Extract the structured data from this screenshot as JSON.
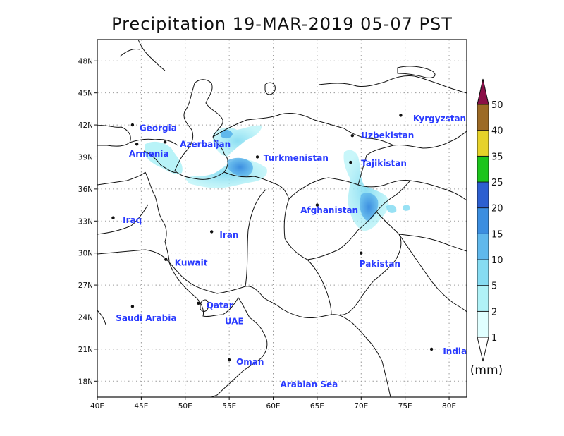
{
  "title": "Precipitation 19-MAR-2019 05-07 PST",
  "map": {
    "lon_range": [
      40,
      82
    ],
    "lat_range": [
      16.5,
      50
    ],
    "x_ticks": [
      "40E",
      "45E",
      "50E",
      "55E",
      "60E",
      "65E",
      "70E",
      "75E",
      "80E"
    ],
    "x_tick_values": [
      40,
      45,
      50,
      55,
      60,
      65,
      70,
      75,
      80
    ],
    "y_ticks": [
      "18N",
      "21N",
      "24N",
      "27N",
      "30N",
      "33N",
      "36N",
      "39N",
      "42N",
      "45N",
      "48N"
    ],
    "y_tick_values": [
      18,
      21,
      24,
      27,
      30,
      33,
      36,
      39,
      42,
      45,
      48
    ],
    "grid": "dotted"
  },
  "labels": [
    {
      "name": "Georgia",
      "lon": 44.8,
      "lat": 41.7,
      "dot": [
        44.0,
        42.0
      ]
    },
    {
      "name": "Azerbaijan",
      "lon": 49.4,
      "lat": 40.2,
      "dot": [
        47.7,
        40.4
      ]
    },
    {
      "name": "Armenia",
      "lon": 43.6,
      "lat": 39.3,
      "dot": [
        44.5,
        40.2
      ]
    },
    {
      "name": "Turkmenistan",
      "lon": 58.9,
      "lat": 38.9,
      "dot": [
        58.2,
        39.0
      ]
    },
    {
      "name": "Uzbekistan",
      "lon": 70.0,
      "lat": 41.0,
      "dot": [
        69.0,
        41.0
      ]
    },
    {
      "name": "Kyrgyzstan",
      "lon": 75.9,
      "lat": 42.6,
      "dot": [
        74.5,
        42.9
      ]
    },
    {
      "name": "Tajikistan",
      "lon": 70.0,
      "lat": 38.4,
      "dot": [
        68.8,
        38.5
      ]
    },
    {
      "name": "Afghanistan",
      "lon": 63.1,
      "lat": 34.0,
      "dot": [
        65.0,
        34.5
      ]
    },
    {
      "name": "Iraq",
      "lon": 42.9,
      "lat": 33.1,
      "dot": [
        41.8,
        33.3
      ]
    },
    {
      "name": "Iran",
      "lon": 53.9,
      "lat": 31.7,
      "dot": [
        53.0,
        32.0
      ]
    },
    {
      "name": "Kuwait",
      "lon": 48.8,
      "lat": 29.1,
      "dot": [
        47.8,
        29.4
      ]
    },
    {
      "name": "Pakistan",
      "lon": 69.8,
      "lat": 29.0,
      "dot": [
        70.0,
        30.0
      ]
    },
    {
      "name": "Qatar",
      "lon": 52.4,
      "lat": 25.1,
      "dot": [
        51.5,
        25.3
      ]
    },
    {
      "name": "Saudi Arabia",
      "lon": 42.1,
      "lat": 23.9,
      "dot": [
        44.0,
        25.0
      ]
    },
    {
      "name": "UAE",
      "lon": 54.5,
      "lat": 23.6,
      "dot": null
    },
    {
      "name": "India",
      "lon": 79.3,
      "lat": 20.8,
      "dot": [
        78.0,
        21.0
      ]
    },
    {
      "name": "Oman",
      "lon": 55.8,
      "lat": 19.8,
      "dot": [
        55.0,
        20.0
      ]
    },
    {
      "name": "Arabian Sea",
      "lon": 60.8,
      "lat": 17.7,
      "dot": null
    }
  ],
  "colorbar": {
    "levels": [
      "1",
      "2",
      "5",
      "10",
      "15",
      "20",
      "25",
      "35",
      "40",
      "50"
    ],
    "colors": [
      "#e0ffff",
      "#b0f2f7",
      "#86dcf2",
      "#60b8ec",
      "#3c8ee0",
      "#2d5fd0",
      "#1cc41c",
      "#e6d22a",
      "#9c6a25",
      "#e8402e",
      "#d42040",
      "#8a1048"
    ],
    "unit": "(mm)"
  }
}
